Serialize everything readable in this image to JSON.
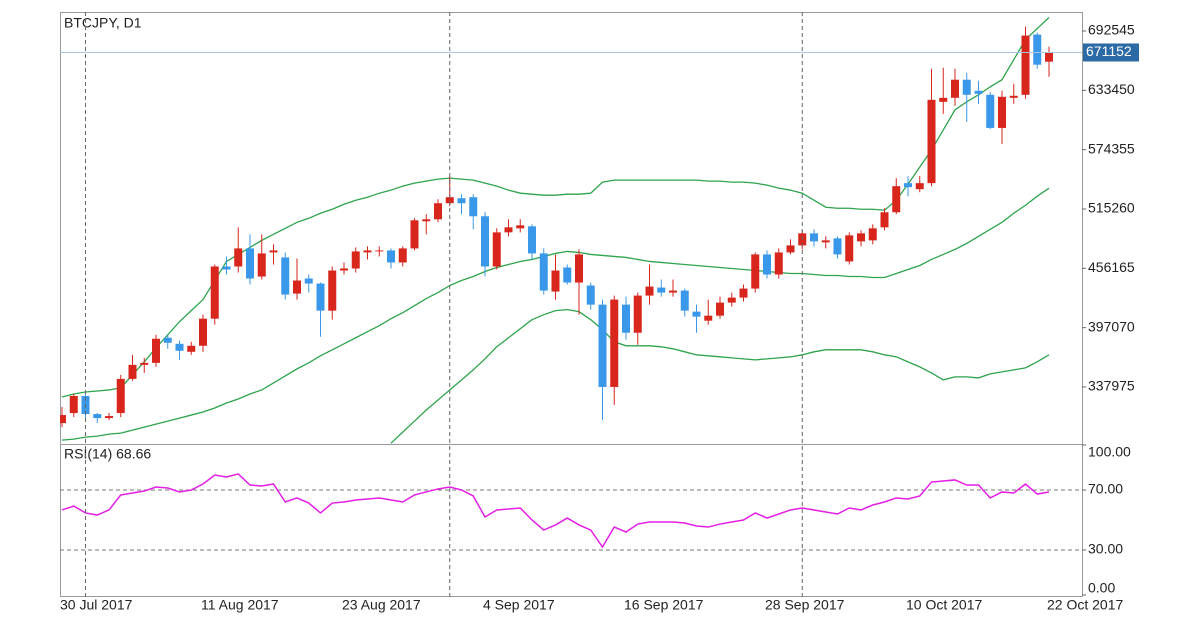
{
  "chart_data": [
    {
      "type": "candlestick",
      "title": "BTCJPY, D1",
      "categories": [
        "30 Jul 2017",
        null,
        null,
        null,
        null,
        null,
        null,
        null,
        null,
        null,
        null,
        null,
        "11 Aug 2017",
        null,
        null,
        null,
        null,
        null,
        null,
        null,
        null,
        null,
        null,
        null,
        "23 Aug 2017",
        null,
        null,
        null,
        null,
        null,
        null,
        null,
        null,
        null,
        null,
        null,
        "4 Sep 2017",
        null,
        null,
        null,
        null,
        null,
        null,
        null,
        null,
        null,
        null,
        null,
        "16 Sep 2017",
        null,
        null,
        null,
        null,
        null,
        null,
        null,
        null,
        null,
        null,
        null,
        "28 Sep 2017",
        null,
        null,
        null,
        null,
        null,
        null,
        null,
        null,
        null,
        null,
        null,
        "10 Oct 2017",
        null,
        null,
        null,
        null,
        null,
        null,
        null,
        null,
        null,
        null,
        null,
        "22 Oct 2017"
      ],
      "open": [
        302000,
        312000,
        329000,
        311000,
        307000,
        312000,
        346000,
        360000,
        362000,
        387000,
        381000,
        373000,
        379000,
        406000,
        458000,
        458000,
        476000,
        448000,
        472000,
        467000,
        431000,
        446000,
        441000,
        414000,
        454000,
        456000,
        472000,
        473000,
        474000,
        462000,
        476000,
        503000,
        505000,
        521000,
        526000,
        527000,
        508000,
        458000,
        492000,
        496000,
        498000,
        471000,
        433000,
        457000,
        442000,
        439000,
        420000,
        338000,
        420000,
        392000,
        429000,
        437000,
        432000,
        434000,
        413000,
        404000,
        409000,
        422000,
        427000,
        436000,
        470000,
        450000,
        472000,
        479000,
        491000,
        482000,
        486000,
        463000,
        483000,
        484000,
        497000,
        512000,
        541000,
        535000,
        541000,
        622000,
        626000,
        644000,
        633000,
        629000,
        596000,
        626000,
        629000,
        689000,
        662000
      ],
      "high": [
        318000,
        331000,
        332000,
        312000,
        312000,
        350000,
        370000,
        367000,
        390000,
        390000,
        384000,
        383000,
        410000,
        460000,
        468000,
        497000,
        490000,
        490000,
        480000,
        472000,
        466000,
        450000,
        442000,
        458000,
        462000,
        477000,
        478000,
        478000,
        476000,
        478000,
        506000,
        510000,
        525000,
        548000,
        530000,
        530000,
        512000,
        496000,
        505000,
        505000,
        500000,
        476000,
        470000,
        460000,
        475000,
        442000,
        425000,
        429000,
        428000,
        432000,
        460000,
        445000,
        445000,
        436000,
        420000,
        425000,
        428000,
        432000,
        440000,
        472000,
        474000,
        476000,
        485000,
        494000,
        495000,
        488000,
        488000,
        492000,
        494000,
        500000,
        516000,
        546000,
        548000,
        548000,
        655000,
        656000,
        655000,
        651000,
        643000,
        632000,
        633000,
        640000,
        697000,
        691000,
        677000
      ],
      "low": [
        298000,
        308000,
        305000,
        302000,
        305000,
        308000,
        344000,
        352000,
        358000,
        376000,
        365000,
        370000,
        373000,
        400000,
        450000,
        452000,
        440000,
        445000,
        460000,
        425000,
        425000,
        432000,
        388000,
        405000,
        450000,
        452000,
        465000,
        468000,
        456000,
        458000,
        474000,
        490000,
        502000,
        518000,
        510000,
        495000,
        448000,
        455000,
        488000,
        492000,
        465000,
        430000,
        425000,
        440000,
        410000,
        415000,
        305000,
        320000,
        385000,
        380000,
        420000,
        428000,
        428000,
        408000,
        392000,
        400000,
        406000,
        418000,
        423000,
        432000,
        446000,
        446000,
        470000,
        475000,
        478000,
        476000,
        466000,
        460000,
        478000,
        480000,
        494000,
        510000,
        528000,
        532000,
        538000,
        610000,
        618000,
        602000,
        620000,
        595000,
        580000,
        620000,
        625000,
        655000,
        647000
      ],
      "close": [
        310000,
        329000,
        311000,
        307000,
        309000,
        346000,
        360000,
        362000,
        386000,
        382000,
        374000,
        379000,
        406000,
        458000,
        455000,
        476000,
        446000,
        471000,
        474000,
        430000,
        444000,
        441000,
        414000,
        454000,
        456000,
        473000,
        474000,
        474000,
        462000,
        476000,
        504000,
        505000,
        521000,
        527000,
        521000,
        508000,
        458000,
        492000,
        497000,
        499000,
        471000,
        434000,
        454000,
        442000,
        470000,
        420000,
        338000,
        425000,
        392000,
        429000,
        438000,
        432000,
        434000,
        414000,
        408000,
        409000,
        422000,
        427000,
        436000,
        470000,
        450000,
        472000,
        479000,
        491000,
        483000,
        484000,
        470000,
        489000,
        491000,
        496000,
        512000,
        538000,
        537000,
        541000,
        624000,
        626000,
        644000,
        629000,
        630000,
        596000,
        627000,
        628000,
        688000,
        659000,
        671152
      ],
      "up_color": "#d8261c",
      "down_color": "#3a98ea",
      "lines": [
        {
          "color": "#2ea44c",
          "values": [
            328000,
            331000,
            333000,
            334000,
            335000,
            337000,
            350000,
            363000,
            377000,
            390000,
            403000,
            414000,
            425000,
            444000,
            463000,
            470000,
            477000,
            484000,
            490000,
            496000,
            502000,
            506000,
            511000,
            515000,
            520000,
            524000,
            527000,
            531000,
            534000,
            538000,
            541000,
            543000,
            545000,
            546000,
            545000,
            544000,
            541000,
            538000,
            534000,
            531000,
            530000,
            529000,
            529000,
            530000,
            530000,
            531000,
            542000,
            544000,
            544000,
            544000,
            544000,
            544000,
            544000,
            544000,
            544000,
            543000,
            543000,
            542000,
            542000,
            541000,
            539000,
            536000,
            534000,
            531000,
            524000,
            517000,
            516000,
            516000,
            515000,
            515000,
            514000,
            524000,
            540000,
            557000,
            574000,
            594000,
            614000,
            622000,
            629000,
            637000,
            644000,
            664000,
            684000,
            695000,
            706000
          ]
        },
        {
          "color": "#2ea44c",
          "values": [
            285000,
            286000,
            288000,
            289000,
            291000,
            292000,
            295000,
            298000,
            301000,
            304000,
            307000,
            310000,
            313000,
            317000,
            322000,
            326000,
            331000,
            335000,
            342000,
            349000,
            356000,
            362000,
            369000,
            375000,
            381000,
            387000,
            393000,
            399000,
            406000,
            412000,
            419000,
            426000,
            432000,
            439000,
            444000,
            448000,
            453000,
            457000,
            460000,
            463000,
            465000,
            468000,
            471000,
            473000,
            472000,
            470000,
            469000,
            468000,
            467000,
            465000,
            463000,
            462000,
            461000,
            460000,
            459000,
            458000,
            457000,
            456000,
            455000,
            454000,
            453000,
            452000,
            451000,
            451000,
            450000,
            449000,
            449000,
            448000,
            448000,
            447000,
            447000,
            451000,
            455000,
            459000,
            465000,
            470000,
            475000,
            481000,
            488000,
            495000,
            502000,
            511000,
            519000,
            528000,
            536000
          ]
        },
        {
          "color": "#2ea44c",
          "values": [
            null,
            null,
            null,
            null,
            null,
            null,
            null,
            null,
            null,
            null,
            null,
            null,
            null,
            null,
            null,
            null,
            null,
            null,
            null,
            null,
            null,
            null,
            null,
            null,
            null,
            null,
            null,
            null,
            282000,
            293000,
            304000,
            315000,
            325000,
            335000,
            345000,
            355000,
            366000,
            378000,
            387000,
            396000,
            405000,
            410000,
            414000,
            415000,
            413000,
            405000,
            395000,
            383000,
            379000,
            379000,
            379000,
            378000,
            376000,
            373000,
            370000,
            369000,
            368000,
            367000,
            366000,
            365000,
            366000,
            367000,
            368000,
            370000,
            373000,
            375000,
            375000,
            375000,
            375000,
            373000,
            370000,
            368000,
            363000,
            358000,
            352000,
            345000,
            348000,
            348000,
            347000,
            351000,
            353000,
            355000,
            357000,
            363000,
            370000
          ]
        }
      ],
      "current_price": 671152,
      "current_color": "#a9c6e2",
      "current_label_color": "#2c6aa5",
      "ylim": [
        281175,
        711478
      ],
      "yticks": [
        337975,
        397070,
        456165,
        515260,
        574355,
        633450,
        692545
      ]
    },
    {
      "type": "line",
      "title": "RSI(14) 68.66",
      "color": "#e51ee5",
      "values": [
        56.7,
        59.3,
        54.7,
        53.3,
        56.7,
        66.7,
        68,
        69.3,
        72,
        71.3,
        68.7,
        70,
        74,
        80,
        78.7,
        80.7,
        73.3,
        72.7,
        74,
        62,
        64.7,
        61.3,
        54.7,
        61.3,
        62,
        63.3,
        64,
        64.7,
        63.3,
        62,
        66.7,
        68.7,
        70.7,
        72,
        70,
        66,
        52,
        56.7,
        57.3,
        58,
        50,
        43.3,
        46.7,
        51.3,
        46.7,
        43.3,
        32,
        45.3,
        42,
        47.3,
        48.7,
        48.7,
        48.7,
        48,
        46,
        45.3,
        47.3,
        48.7,
        50,
        54.7,
        51.3,
        54,
        56.7,
        58,
        56.7,
        55.3,
        54,
        58,
        56.7,
        60,
        62,
        64.7,
        64,
        66,
        75.3,
        76,
        76.7,
        73.3,
        73.3,
        64.7,
        68.7,
        68,
        74,
        67.3,
        68.66
      ],
      "ylim": [
        0,
        100
      ],
      "yticks": [
        {
          "value": 0,
          "label": "0.00"
        },
        {
          "value": 30,
          "label": "30.00"
        },
        {
          "value": 70,
          "label": "70.00"
        },
        {
          "value": 100,
          "label": "100.00"
        }
      ]
    }
  ]
}
